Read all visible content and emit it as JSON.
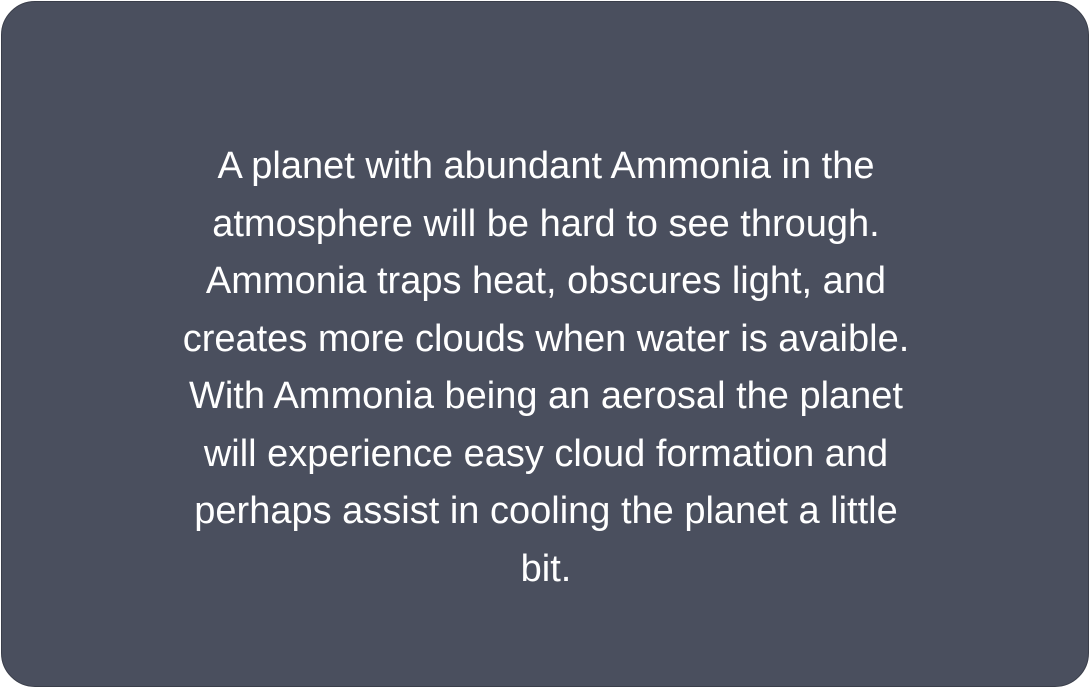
{
  "card": {
    "background": "#4a4f5e",
    "text_color": "#ffffff",
    "lines": [
      "A planet with abundant Ammonia in the",
      "atmosphere will be hard to see through.",
      "Ammonia traps heat, obscures light, and",
      "creates more clouds when water is avaible.",
      "With Ammonia being an aerosal the planet",
      "will experience easy cloud formation and",
      "perhaps assist in cooling the planet a little",
      "bit."
    ]
  }
}
